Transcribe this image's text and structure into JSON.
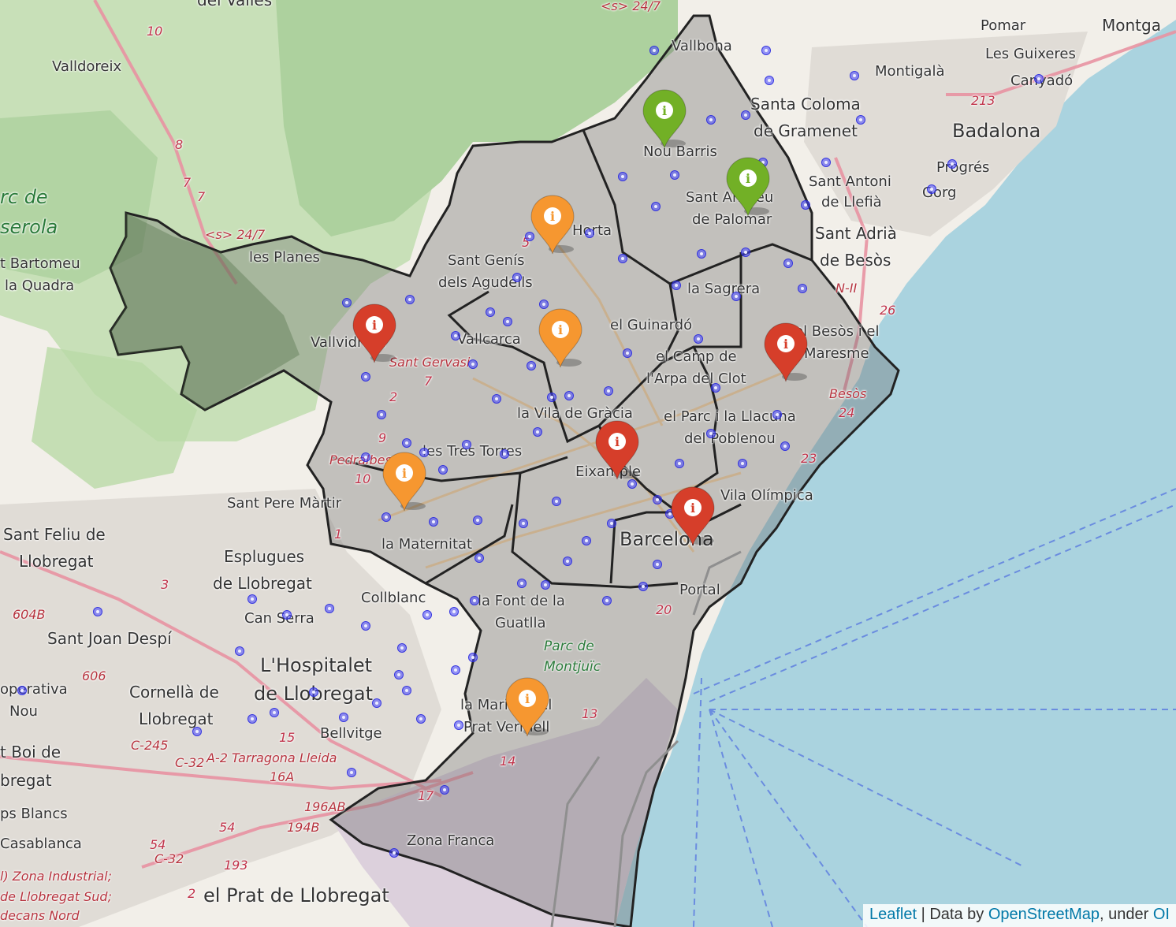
{
  "attribution": {
    "leaflet": "Leaflet",
    "sep": " | Data by ",
    "osm": "OpenStreetMap",
    "under": ", under ",
    "license": "OI"
  },
  "places": [
    {
      "text": "Vallbona",
      "cls": "sm"
    },
    {
      "text": "Pomar",
      "cls": "sm"
    },
    {
      "text": "Montga",
      "cls": "med"
    },
    {
      "text": "Valldoreix",
      "cls": "sm"
    },
    {
      "text": "Les Guixeres",
      "cls": "sm"
    },
    {
      "text": "Montigalà",
      "cls": "sm"
    },
    {
      "text": "Canyadó",
      "cls": "sm"
    },
    {
      "text": "Santa Coloma",
      "cls": "med"
    },
    {
      "text": "de Gramenet",
      "cls": "med"
    },
    {
      "text": "Badalona",
      "cls": "big"
    },
    {
      "text": "Nou Barris",
      "cls": "sm"
    },
    {
      "text": "Progrés",
      "cls": "sm"
    },
    {
      "text": "Sant Antoni",
      "cls": "sm"
    },
    {
      "text": "de Llefià",
      "cls": "sm"
    },
    {
      "text": "Gorg",
      "cls": "sm"
    },
    {
      "text": "Sant Andreu",
      "cls": "sm"
    },
    {
      "text": "de Palomar",
      "cls": "sm"
    },
    {
      "text": "Sant Adrià",
      "cls": "med"
    },
    {
      "text": "de Besòs",
      "cls": "med"
    },
    {
      "text": "Horta",
      "cls": "sm"
    },
    {
      "text": "Sant Genís",
      "cls": "sm"
    },
    {
      "text": "dels Agudells",
      "cls": "sm"
    },
    {
      "text": "les Planes",
      "cls": "sm"
    },
    {
      "text": "t Bartomeu",
      "cls": "sm"
    },
    {
      "text": "la Quadra",
      "cls": "sm"
    },
    {
      "text": "la Sagrera",
      "cls": "sm"
    },
    {
      "text": "el Guinardó",
      "cls": "sm"
    },
    {
      "text": "el Besòs i el",
      "cls": "sm"
    },
    {
      "text": "Maresme",
      "cls": "sm"
    },
    {
      "text": "Vallvidrera",
      "cls": "sm"
    },
    {
      "text": "Vallcarca",
      "cls": "sm"
    },
    {
      "text": "el Camp de",
      "cls": "sm"
    },
    {
      "text": "l'Arpa del Clot",
      "cls": "sm"
    },
    {
      "text": "la Vila de Gràcia",
      "cls": "sm"
    },
    {
      "text": "el Parc i la Llacuna",
      "cls": "sm"
    },
    {
      "text": "del Poblenou",
      "cls": "sm"
    },
    {
      "text": "les Tres Torres",
      "cls": "sm"
    },
    {
      "text": "Eixample",
      "cls": "sm"
    },
    {
      "text": "Sant Pere Màrtir",
      "cls": "sm"
    },
    {
      "text": "Vila Olímpica",
      "cls": "sm"
    },
    {
      "text": "Sant Feliu de",
      "cls": "med"
    },
    {
      "text": "Llobregat",
      "cls": "med"
    },
    {
      "text": "Esplugues",
      "cls": "med"
    },
    {
      "text": "de Llobregat",
      "cls": "med"
    },
    {
      "text": "la Maternitat",
      "cls": "sm"
    },
    {
      "text": "Barcelona",
      "cls": "big"
    },
    {
      "text": "Collblanc",
      "cls": "sm"
    },
    {
      "text": "Portal",
      "cls": "sm"
    },
    {
      "text": "Can Serra",
      "cls": "sm"
    },
    {
      "text": "la Font de la",
      "cls": "sm"
    },
    {
      "text": "Guatlla",
      "cls": "sm"
    },
    {
      "text": "Sant Joan Despí",
      "cls": "med"
    },
    {
      "text": "L'Hospitalet",
      "cls": "big"
    },
    {
      "text": "de Llobregat",
      "cls": "big"
    },
    {
      "text": "Cornellà de",
      "cls": "med"
    },
    {
      "text": "Llobregat",
      "cls": "med"
    },
    {
      "text": "operativa",
      "cls": "sm"
    },
    {
      "text": "Nou",
      "cls": "sm"
    },
    {
      "text": "la Marina del",
      "cls": "sm"
    },
    {
      "text": "Prat Vermell",
      "cls": "sm"
    },
    {
      "text": "Bellvitge",
      "cls": "sm"
    },
    {
      "text": "t Boi de",
      "cls": "med"
    },
    {
      "text": "bregat",
      "cls": "med"
    },
    {
      "text": "ps Blancs",
      "cls": "sm"
    },
    {
      "text": "Casablanca",
      "cls": "sm"
    },
    {
      "text": "Zona Franca",
      "cls": "sm"
    },
    {
      "text": "el Prat de Llobregat",
      "cls": "big"
    },
    {
      "text": "del Valles",
      "cls": "med"
    }
  ],
  "park_labels": [
    {
      "text": "rc de"
    },
    {
      "text": "serola"
    },
    {
      "text": "Parc de"
    },
    {
      "text": "Montjuïc"
    }
  ],
  "road_labels": [
    {
      "text": "Sant Gervasi"
    },
    {
      "text": "Pedralbes"
    },
    {
      "text": "Besòs"
    },
    {
      "text": "A-2 Tarragona Lleida"
    },
    {
      "text": "l) Zona Industrial;"
    },
    {
      "text": "de Llobregat Sud;"
    },
    {
      "text": "decans Nord"
    },
    {
      "text": "N-II"
    },
    {
      "text": "C-245"
    },
    {
      "text": "C-32"
    },
    {
      "text": "C-32"
    },
    {
      "text": "604B"
    },
    {
      "text": "606"
    },
    {
      "text": "196AB"
    },
    {
      "text": "194B"
    },
    {
      "text": "16A"
    },
    {
      "text": "<s> 24/7"
    },
    {
      "text": "<s> 24/7"
    }
  ],
  "road_numbers": [
    "10",
    "8",
    "7",
    "7",
    "213",
    "26",
    "24",
    "23",
    "5",
    "2",
    "7",
    "9",
    "10",
    "1",
    "3",
    "20",
    "13",
    "14",
    "17",
    "15",
    "54",
    "54",
    "193",
    "2"
  ],
  "markers": [
    {
      "color": "green",
      "fill": "#72b026",
      "icon": "i"
    },
    {
      "color": "green",
      "fill": "#72b026",
      "icon": "i"
    },
    {
      "color": "orange",
      "fill": "#f69730",
      "icon": "i"
    },
    {
      "color": "orange",
      "fill": "#f69730",
      "icon": "i"
    },
    {
      "color": "red",
      "fill": "#d63e2a",
      "icon": "i"
    },
    {
      "color": "red",
      "fill": "#d63e2a",
      "icon": "i"
    },
    {
      "color": "red",
      "fill": "#d63e2a",
      "icon": "i"
    },
    {
      "color": "orange",
      "fill": "#f69730",
      "icon": "i"
    },
    {
      "color": "red",
      "fill": "#d63e2a",
      "icon": "i"
    },
    {
      "color": "orange",
      "fill": "#f69730",
      "icon": "i"
    }
  ],
  "colors": {
    "sea": "#aad3df",
    "land": "#f2efe9",
    "forest": "#add19e",
    "district_fill": "#6b6b6b",
    "district_stroke": "#222222",
    "dots": "#4646ff",
    "marker_green": "#72b026",
    "marker_orange": "#f69730",
    "marker_red": "#d63e2a"
  }
}
